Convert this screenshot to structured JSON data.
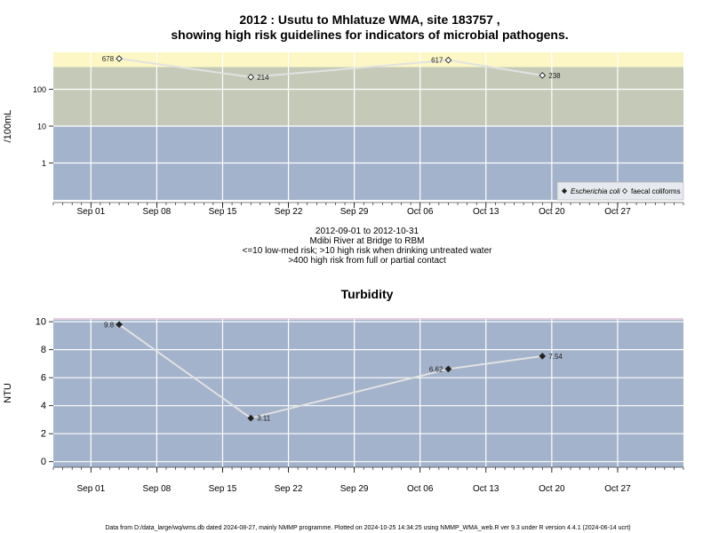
{
  "title_line1": "2012 : Usutu to Mhlatuze WMA, site 183757 ,",
  "title_line2": "showing high risk guidelines for indicators of microbial pathogens.",
  "caption": [
    "2012-09-01 to 2012-10-31",
    "Mdibi River at Bridge to RBM",
    "<=10 low-med risk; >10 high risk when drinking untreated water",
    ">400 high risk from full or partial contact"
  ],
  "footer": "Data from D:/data_large/wq/wms.db dated 2024-08-27, mainly NMMP programme. Plotted on 2024-10-25 14:34:25 using NMMP_WMA_web.R ver 9.3 under R version 4.4.1 (2024-06-14 ucrt)",
  "colors": {
    "band_low": "#a3b3cb",
    "band_high": "#c5cab8",
    "band_contact": "#fcf7c4",
    "line": "#e2e2e2",
    "grid": "#ffffff"
  },
  "chart_data": [
    {
      "type": "line",
      "title": "",
      "ylabel": "/100mL",
      "y_scale": "log",
      "ylim": [
        0.1,
        1000
      ],
      "y_ticks": [
        1,
        10,
        100
      ],
      "y_tick_labels": [
        "1",
        "10",
        "100"
      ],
      "bands": [
        {
          "from": 0.1,
          "to": 10,
          "color": "#a3b3cb"
        },
        {
          "from": 10,
          "to": 400,
          "color": "#c5cab8"
        },
        {
          "from": 400,
          "to": 1000,
          "color": "#fcf7c4"
        }
      ],
      "xlim": [
        "2012-08-28",
        "2012-11-03"
      ],
      "x_ticks": [
        "2012-09-01",
        "2012-09-08",
        "2012-09-15",
        "2012-09-22",
        "2012-09-29",
        "2012-10-06",
        "2012-10-13",
        "2012-10-20",
        "2012-10-27"
      ],
      "x_tick_labels": [
        "Sep 01",
        "Sep 08",
        "Sep 15",
        "Sep 22",
        "Sep 29",
        "Oct 06",
        "Oct 13",
        "Oct 20",
        "Oct 27"
      ],
      "series": [
        {
          "name": "faecal coliforms",
          "marker": "open-diamond",
          "points": [
            {
              "date": "2012-09-04",
              "value": 678,
              "label": "678",
              "label_side": "left"
            },
            {
              "date": "2012-09-18",
              "value": 214,
              "label": "214",
              "label_side": "right"
            },
            {
              "date": "2012-10-09",
              "value": 617,
              "label": "617",
              "label_side": "left"
            },
            {
              "date": "2012-10-19",
              "value": 238,
              "label": "238",
              "label_side": "right"
            }
          ]
        }
      ],
      "legend": {
        "placement": "bottom-right",
        "entries": [
          {
            "label": "Escherichia coli",
            "marker": "filled-diamond",
            "italic": true
          },
          {
            "label": "faecal coliforms",
            "marker": "open-diamond",
            "italic": false
          }
        ]
      }
    },
    {
      "type": "line",
      "title": "Turbidity",
      "ylabel": "NTU",
      "y_scale": "linear",
      "ylim": [
        -0.4,
        10.2
      ],
      "y_ticks": [
        0,
        2,
        4,
        6,
        8,
        10
      ],
      "y_tick_labels": [
        "0",
        "2",
        "4",
        "6",
        "8",
        "10"
      ],
      "xlim": [
        "2012-08-28",
        "2012-11-03"
      ],
      "x_ticks": [
        "2012-09-01",
        "2012-09-08",
        "2012-09-15",
        "2012-09-22",
        "2012-09-29",
        "2012-10-06",
        "2012-10-13",
        "2012-10-20",
        "2012-10-27"
      ],
      "x_tick_labels": [
        "Sep 01",
        "Sep 08",
        "Sep 15",
        "Sep 22",
        "Sep 29",
        "Oct 06",
        "Oct 13",
        "Oct 20",
        "Oct 27"
      ],
      "series": [
        {
          "name": "",
          "marker": "filled-diamond",
          "points": [
            {
              "date": "2012-09-04",
              "value": 9.8,
              "label": "9.8",
              "label_side": "left"
            },
            {
              "date": "2012-09-18",
              "value": 3.11,
              "label": "3.11",
              "label_side": "right"
            },
            {
              "date": "2012-10-09",
              "value": 6.62,
              "label": "6.62",
              "label_side": "left"
            },
            {
              "date": "2012-10-19",
              "value": 7.54,
              "label": "7.54",
              "label_side": "right"
            }
          ]
        }
      ]
    }
  ]
}
